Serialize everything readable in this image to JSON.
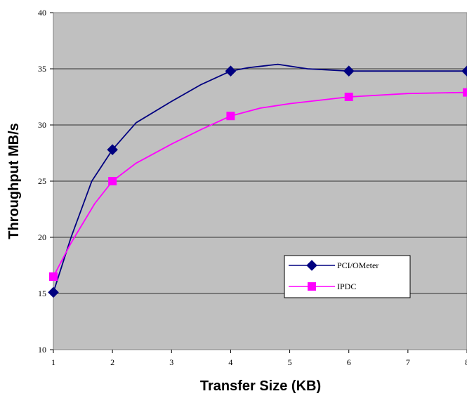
{
  "chart_data": {
    "type": "line",
    "title": "",
    "xlabel": "Transfer Size (KB)",
    "ylabel": "Throughput MB/s",
    "xlim": [
      1,
      8
    ],
    "ylim": [
      10,
      40
    ],
    "x_ticks": [
      "1",
      "2",
      "3",
      "4",
      "5",
      "6",
      "7",
      "8"
    ],
    "y_ticks": [
      "10",
      "15",
      "20",
      "25",
      "30",
      "35",
      "40"
    ],
    "grid": "horizontal",
    "plot_background": "#C0C0C0",
    "legend_position": "lower-right",
    "series": [
      {
        "name": "PCI/OMeter",
        "color": "#000080",
        "marker": "diamond",
        "x": [
          1,
          2,
          4,
          6,
          8
        ],
        "y": [
          15.1,
          27.8,
          34.8,
          34.8,
          34.8
        ],
        "curve": [
          [
            1,
            15.1
          ],
          [
            1.3,
            20.0
          ],
          [
            1.65,
            25.0
          ],
          [
            2,
            27.8
          ],
          [
            2.4,
            30.2
          ],
          [
            3,
            32.1
          ],
          [
            3.5,
            33.6
          ],
          [
            4,
            34.8
          ],
          [
            4.3,
            35.1
          ],
          [
            4.8,
            35.4
          ],
          [
            5.3,
            35.0
          ],
          [
            6,
            34.8
          ],
          [
            7,
            34.8
          ],
          [
            8,
            34.8
          ]
        ]
      },
      {
        "name": "IPDC",
        "color": "#FF00FF",
        "marker": "square",
        "x": [
          1,
          2,
          4,
          6,
          8
        ],
        "y": [
          16.5,
          25.0,
          30.8,
          32.5,
          32.9
        ],
        "curve": [
          [
            1,
            16.5
          ],
          [
            1.3,
            19.5
          ],
          [
            1.7,
            23.0
          ],
          [
            2,
            25.0
          ],
          [
            2.4,
            26.6
          ],
          [
            3,
            28.3
          ],
          [
            3.5,
            29.6
          ],
          [
            4,
            30.8
          ],
          [
            4.5,
            31.5
          ],
          [
            5,
            31.9
          ],
          [
            6,
            32.5
          ],
          [
            7,
            32.8
          ],
          [
            8,
            32.9
          ]
        ]
      }
    ]
  }
}
